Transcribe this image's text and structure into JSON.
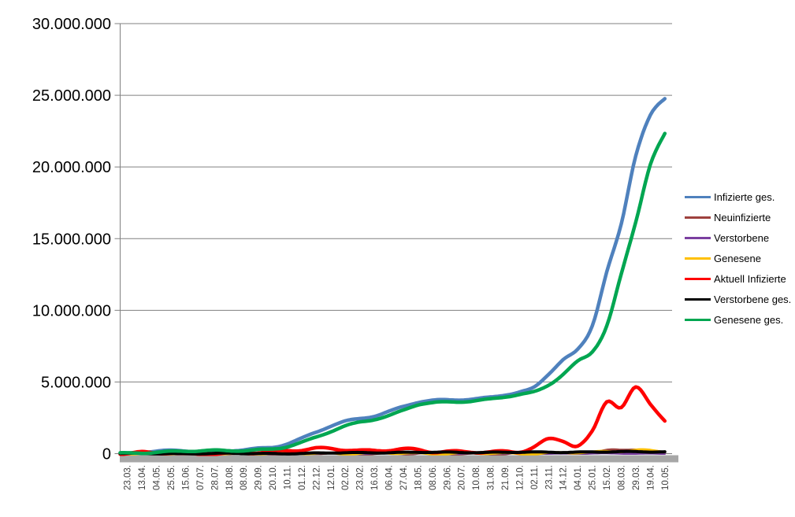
{
  "window": {
    "background": "#ffffff"
  },
  "chart_data": {
    "type": "line",
    "title": "",
    "xlabel": "",
    "ylabel": "",
    "ylim": [
      0,
      30000000
    ],
    "grid": "horizontal",
    "legend_position": "right",
    "grid_color": "#808080",
    "axis_line_color": "#808080",
    "axis_base_bar_color": "#a7a7a7",
    "y_label_color": "#000000",
    "x_label_color": "#3f3f3f",
    "y_tick_labels": [
      "30.000.000",
      "25.000.000",
      "20.000.000",
      "15.000.000",
      "10.000.000",
      "5.000.000",
      "0"
    ],
    "categories": [
      "23.03.",
      "13.04.",
      "04.05.",
      "25.05.",
      "15.06.",
      "07.07.",
      "28.07.",
      "18.08.",
      "08.09.",
      "29.09.",
      "20.10.",
      "10.11.",
      "01.12.",
      "22.12.",
      "12.01.",
      "02.02.",
      "23.02.",
      "16.03.",
      "06.04.",
      "27.04.",
      "18.05.",
      "08.06.",
      "29.06.",
      "20.07.",
      "10.08.",
      "31.08.",
      "21.09.",
      "12.10.",
      "02.11.",
      "23.11.",
      "14.12.",
      "04.01.",
      "25.01.",
      "15.02.",
      "08.03.",
      "29.03.",
      "19.04.",
      "10.05."
    ],
    "series": [
      {
        "name": "Infizierte ges.",
        "color": "#4F81BD",
        "values": [
          30000,
          130000,
          163000,
          180000,
          187000,
          197000,
          210000,
          235000,
          280000,
          330000,
          420000,
          690000,
          1080000,
          1530000,
          1950000,
          2240000,
          2420000,
          2610000,
          2930000,
          3310000,
          3620000,
          3710000,
          3730000,
          3750000,
          3800000,
          3940000,
          4140000,
          4310000,
          4620000,
          5550000,
          6530000,
          7240000,
          8950000,
          12700000,
          16000000,
          20800000,
          23600000,
          24700000
        ]
      },
      {
        "name": "Neuinfizierte",
        "color": "#9E413E",
        "values": [
          5000,
          4000,
          1500,
          700,
          500,
          500,
          700,
          1500,
          2000,
          3000,
          8000,
          20000,
          19000,
          26000,
          19000,
          12000,
          8000,
          13000,
          21000,
          23000,
          12000,
          5000,
          1500,
          1500,
          4000,
          9000,
          10000,
          10000,
          26000,
          53000,
          56000,
          42000,
          130000,
          210000,
          220000,
          300000,
          170000,
          90000
        ]
      },
      {
        "name": "Verstorbene",
        "color": "#7B3FA0",
        "values": [
          200,
          300,
          200,
          100,
          50,
          30,
          20,
          20,
          30,
          30,
          60,
          150,
          400,
          700,
          900,
          800,
          500,
          250,
          200,
          250,
          200,
          100,
          50,
          30,
          30,
          50,
          70,
          80,
          150,
          250,
          350,
          350,
          250,
          200,
          250,
          300,
          250,
          150
        ]
      },
      {
        "name": "Genesene",
        "color": "#FFC000",
        "values": [
          1000,
          5000,
          4000,
          1500,
          700,
          500,
          500,
          1000,
          1500,
          2000,
          4000,
          12000,
          18000,
          21000,
          21000,
          16000,
          9000,
          9000,
          16000,
          21000,
          17000,
          8000,
          3000,
          1500,
          2500,
          6000,
          9000,
          9000,
          15000,
          36000,
          50000,
          46000,
          80000,
          170000,
          200000,
          260000,
          230000,
          130000
        ]
      },
      {
        "name": "Aktuell Infizierte",
        "color": "#FF0000",
        "values": [
          30000,
          65000,
          30000,
          15000,
          9000,
          8000,
          10000,
          18000,
          25000,
          40000,
          90000,
          230000,
          310000,
          390000,
          360000,
          250000,
          160000,
          190000,
          290000,
          360000,
          290000,
          130000,
          100000,
          90000,
          120000,
          150000,
          175000,
          165000,
          450000,
          950000,
          880000,
          550000,
          1550000,
          3700000,
          3250000,
          4550000,
          3450000,
          2300000
        ]
      },
      {
        "name": "Verstorbene ges.",
        "color": "#000000",
        "values": [
          500,
          3000,
          6500,
          8300,
          8800,
          9000,
          9100,
          9200,
          9300,
          9500,
          9900,
          11000,
          17000,
          27000,
          42000,
          58000,
          68000,
          74000,
          77000,
          82000,
          86000,
          89000,
          90000,
          91000,
          91500,
          92000,
          93000,
          94000,
          96000,
          100000,
          106000,
          112000,
          117000,
          120000,
          124000,
          128000,
          133000,
          136000
        ]
      },
      {
        "name": "Genesene ges.",
        "color": "#00A651",
        "values": [
          10000,
          60000,
          130000,
          160000,
          172000,
          182000,
          192000,
          205000,
          240000,
          280000,
          340000,
          480000,
          750000,
          1140000,
          1560000,
          1940000,
          2220000,
          2400000,
          2620000,
          3000000,
          3420000,
          3560000,
          3620000,
          3650000,
          3680000,
          3780000,
          3950000,
          4120000,
          4320000,
          4830000,
          5550000,
          6420000,
          7090000,
          8900000,
          12500000,
          16200000,
          20200000,
          22300000
        ]
      }
    ]
  }
}
